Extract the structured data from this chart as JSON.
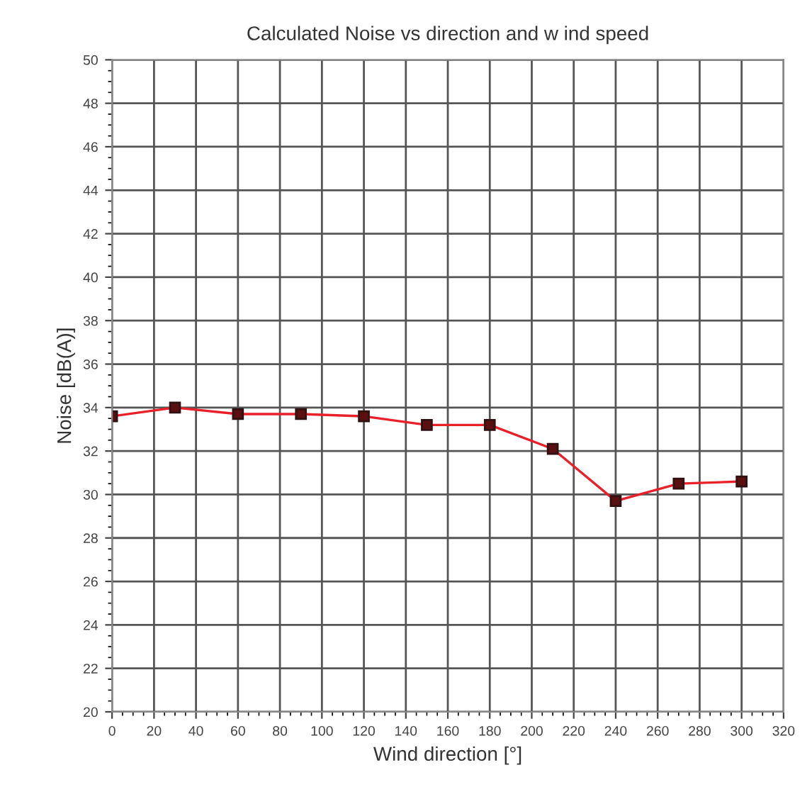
{
  "chart_data": {
    "type": "line",
    "title": "Calculated Noise vs direction and w ind speed",
    "xlabel": "Wind direction [°]",
    "ylabel": "Noise [dB(A)]",
    "x": [
      0,
      30,
      60,
      90,
      120,
      150,
      180,
      210,
      240,
      270,
      300
    ],
    "series": [
      {
        "color": "#e8202a",
        "values": [
          33.6,
          34.0,
          33.7,
          33.7,
          33.6,
          33.2,
          33.2,
          32.1,
          29.7,
          30.5,
          30.6
        ]
      }
    ],
    "xlim": [
      0,
      320
    ],
    "xticks": [
      0,
      20,
      40,
      60,
      80,
      100,
      120,
      140,
      160,
      180,
      200,
      220,
      240,
      260,
      280,
      300,
      320
    ],
    "ylim": [
      20,
      50
    ],
    "yticks": [
      20,
      22,
      24,
      26,
      28,
      30,
      32,
      34,
      36,
      38,
      40,
      42,
      44,
      46,
      48,
      50
    ],
    "grid": true,
    "marker": "square",
    "line_style": "solid"
  }
}
